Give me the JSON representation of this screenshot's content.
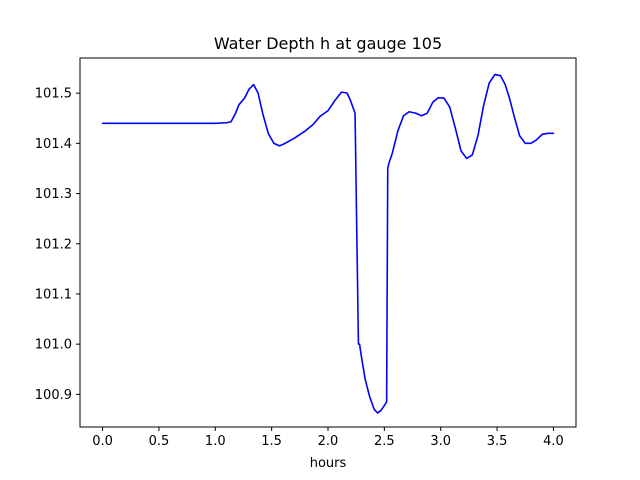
{
  "chart_data": {
    "type": "line",
    "title": "Water Depth h at gauge 105",
    "xlabel": "hours",
    "ylabel": "",
    "xlim": [
      -0.2,
      4.2
    ],
    "ylim": [
      100.835,
      101.57
    ],
    "grid": false,
    "x_ticks": [
      0.0,
      0.5,
      1.0,
      1.5,
      2.0,
      2.5,
      3.0,
      3.5,
      4.0
    ],
    "x_tick_labels": [
      "0.0",
      "0.5",
      "1.0",
      "1.5",
      "2.0",
      "2.5",
      "3.0",
      "3.5",
      "4.0"
    ],
    "y_ticks": [
      100.9,
      101.0,
      101.1,
      101.2,
      101.3,
      101.4,
      101.5
    ],
    "y_tick_labels": [
      "100.9",
      "101.0",
      "101.1",
      "101.2",
      "101.3",
      "101.4",
      "101.5"
    ],
    "colors": {
      "line": "#0000ff",
      "axes": "#000000",
      "background": "#ffffff"
    },
    "series": [
      {
        "x": [
          0.0,
          0.25,
          0.5,
          0.75,
          1.0,
          1.1,
          1.14,
          1.18,
          1.21,
          1.26,
          1.3,
          1.34,
          1.38,
          1.42,
          1.47,
          1.52,
          1.57,
          1.62,
          1.7,
          1.8,
          1.87,
          1.93,
          2.0,
          2.06,
          2.12,
          2.17,
          2.2,
          2.24,
          2.27,
          2.28,
          2.3,
          2.33,
          2.37,
          2.41,
          2.44,
          2.47,
          2.5,
          2.52,
          2.53,
          2.54,
          2.57,
          2.62,
          2.67,
          2.72,
          2.78,
          2.83,
          2.88,
          2.93,
          2.98,
          3.03,
          3.08,
          3.13,
          3.18,
          3.23,
          3.28,
          3.33,
          3.38,
          3.43,
          3.48,
          3.53,
          3.57,
          3.61,
          3.65,
          3.7,
          3.75,
          3.8,
          3.85,
          3.9,
          3.95,
          4.0
        ],
        "y": [
          101.44,
          101.44,
          101.44,
          101.44,
          101.44,
          101.441,
          101.443,
          101.46,
          101.477,
          101.49,
          101.508,
          101.517,
          101.5,
          101.46,
          101.42,
          101.4,
          101.395,
          101.4,
          101.41,
          101.425,
          101.438,
          101.454,
          101.465,
          101.485,
          101.502,
          101.5,
          101.485,
          101.46,
          101.0,
          101.0,
          100.97,
          100.93,
          100.895,
          100.87,
          100.863,
          100.868,
          100.878,
          100.885,
          101.35,
          101.36,
          101.38,
          101.425,
          101.455,
          101.463,
          101.46,
          101.455,
          101.46,
          101.482,
          101.491,
          101.49,
          101.472,
          101.43,
          101.385,
          101.37,
          101.377,
          101.415,
          101.475,
          101.52,
          101.537,
          101.535,
          101.518,
          101.49,
          101.455,
          101.415,
          101.4,
          101.4,
          101.407,
          101.418,
          101.42,
          101.42
        ]
      }
    ]
  }
}
